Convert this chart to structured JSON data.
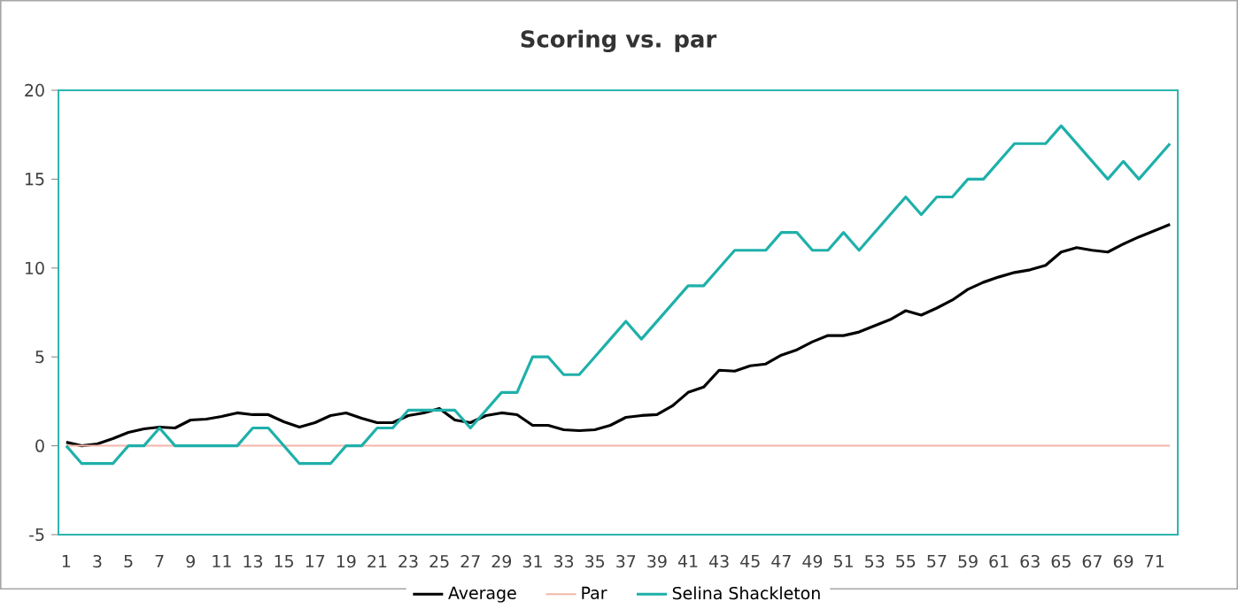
{
  "chart_data": {
    "type": "line",
    "title": "Scoring vs. par",
    "categories": [
      "1",
      null,
      "3",
      null,
      "5",
      null,
      "7",
      null,
      "9",
      null,
      "11",
      null,
      "13",
      null,
      "15",
      null,
      "17",
      null,
      "19",
      null,
      "21",
      null,
      "23",
      null,
      "25",
      null,
      "27",
      null,
      "29",
      null,
      "31",
      null,
      "33",
      null,
      "35",
      null,
      "37",
      null,
      "39",
      null,
      "41",
      null,
      "43",
      null,
      "45",
      null,
      "47",
      null,
      "49",
      null,
      "51",
      null,
      "53",
      null,
      "55",
      null,
      "57",
      null,
      "59",
      null,
      "61",
      null,
      "63",
      null,
      "65",
      null,
      "67",
      null,
      "69",
      null,
      "71",
      null
    ],
    "series": [
      {
        "name": "Average",
        "color": "#000000",
        "values": [
          0.2,
          0,
          0.1,
          0.4,
          0.75,
          0.95,
          1.05,
          1.0,
          1.45,
          1.5,
          1.65,
          1.85,
          1.75,
          1.75,
          1.35,
          1.05,
          1.3,
          1.7,
          1.85,
          1.55,
          1.3,
          1.3,
          1.7,
          1.85,
          2.1,
          1.45,
          1.3,
          1.7,
          1.85,
          1.75,
          1.15,
          1.15,
          0.9,
          0.85,
          0.9,
          1.15,
          1.6,
          1.7,
          1.75,
          2.25,
          3.0,
          3.3,
          4.25,
          4.2,
          4.5,
          4.6,
          5.1,
          5.4,
          5.85,
          6.2,
          6.2,
          6.4,
          6.75,
          7.1,
          7.6,
          7.35,
          7.75,
          8.2,
          8.8,
          9.2,
          9.5,
          9.75,
          9.9,
          10.15,
          10.9,
          11.15,
          11.0,
          10.9,
          11.35,
          11.75,
          12.1,
          12.45
        ]
      },
      {
        "name": "Par",
        "color": "#f4b6a8",
        "values": [
          0,
          0,
          0,
          0,
          0,
          0,
          0,
          0,
          0,
          0,
          0,
          0,
          0,
          0,
          0,
          0,
          0,
          0,
          0,
          0,
          0,
          0,
          0,
          0,
          0,
          0,
          0,
          0,
          0,
          0,
          0,
          0,
          0,
          0,
          0,
          0,
          0,
          0,
          0,
          0,
          0,
          0,
          0,
          0,
          0,
          0,
          0,
          0,
          0,
          0,
          0,
          0,
          0,
          0,
          0,
          0,
          0,
          0,
          0,
          0,
          0,
          0,
          0,
          0,
          0,
          0,
          0,
          0,
          0,
          0,
          0,
          0
        ]
      },
      {
        "name": "Selina Shackleton",
        "color": "#1fb0aa",
        "values": [
          0,
          -1,
          -1,
          -1,
          0,
          0,
          1,
          0,
          0,
          0,
          0,
          0,
          1,
          1,
          0,
          -1,
          -1,
          -1,
          0,
          0,
          1,
          1,
          2,
          2,
          2,
          2,
          1,
          2,
          3,
          3,
          5,
          5,
          4,
          4,
          5,
          6,
          7,
          6,
          7,
          8,
          9,
          9,
          10,
          11,
          11,
          11,
          12,
          12,
          11,
          11,
          12,
          11,
          12,
          13,
          14,
          13,
          14,
          14,
          15,
          15,
          16,
          17,
          17,
          17,
          18,
          17,
          16,
          15,
          16,
          15,
          16,
          17
        ]
      }
    ],
    "ylim": [
      -5,
      20
    ],
    "yticks": [
      -5,
      0,
      5,
      10,
      15,
      20
    ],
    "grid": false,
    "legend": "bottom",
    "marker": "none",
    "line_style": "solid"
  }
}
